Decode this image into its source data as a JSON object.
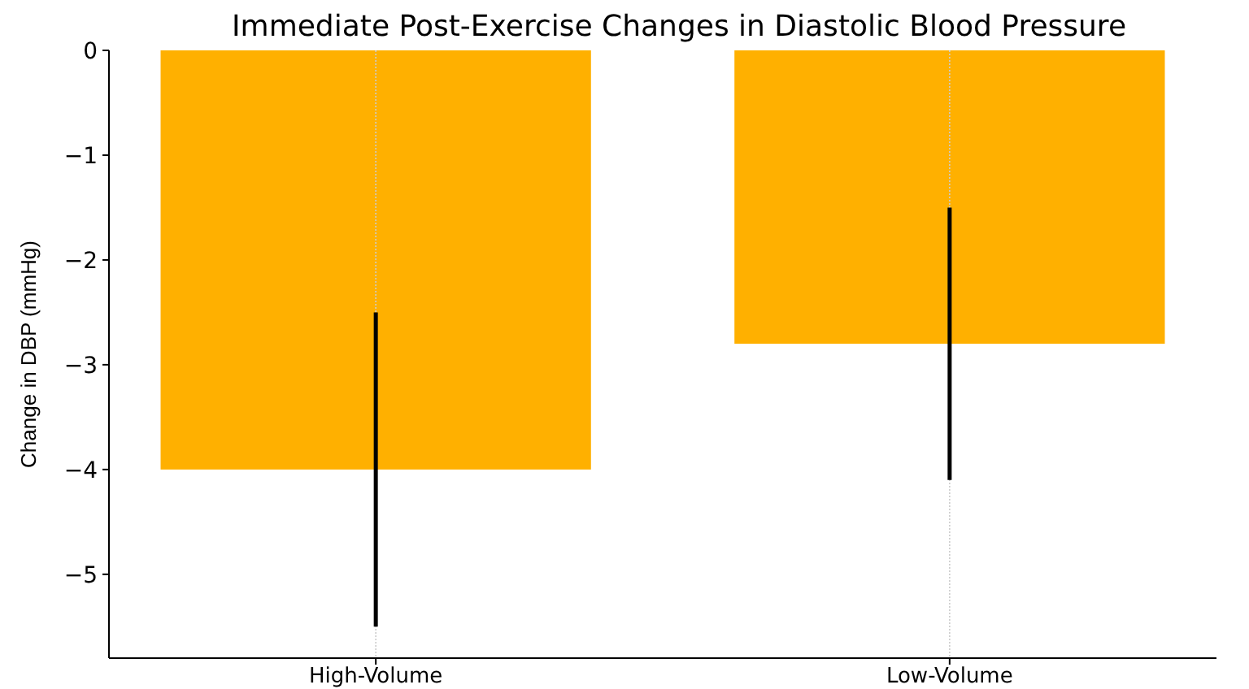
{
  "chart_data": {
    "type": "bar",
    "title": "Immediate Post-Exercise Changes in Diastolic Blood Pressure",
    "ylabel": "Change in DBP (mmHg)",
    "categories": [
      "High-Volume",
      "Low-Volume"
    ],
    "values": [
      -4.0,
      -2.8
    ],
    "errors": [
      1.5,
      1.3
    ],
    "color": "#ffb000",
    "ylim": [
      -5.8,
      0
    ],
    "yticks": [
      {
        "value": -5,
        "label": "−5"
      },
      {
        "value": -4,
        "label": "−4"
      },
      {
        "value": -3,
        "label": "−3"
      },
      {
        "value": -2,
        "label": "−2"
      },
      {
        "value": -1,
        "label": "−1"
      },
      0
    ],
    "grid": "x"
  }
}
